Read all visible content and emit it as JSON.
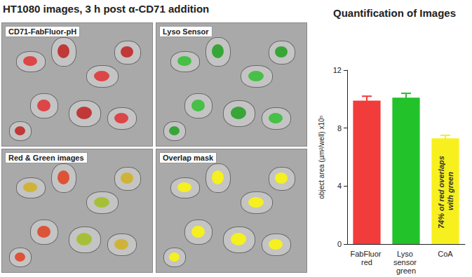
{
  "header": {
    "title": "HT1080 images, 3 h post α-CD71 addition"
  },
  "image_panels": [
    {
      "label": "CD71-FabFluor-pH"
    },
    {
      "label": "Lyso Sensor"
    },
    {
      "label": "Red & Green images"
    },
    {
      "label": "Overlap mask"
    }
  ],
  "chart_data": {
    "type": "bar",
    "title": "Quantification of Images",
    "y_label": "object area (µm²/well) x10⁵",
    "categories": [
      "FabFluor red",
      "Lyso sensor green",
      "CoA"
    ],
    "values": [
      9.9,
      10.1,
      7.3
    ],
    "errors": [
      0.3,
      0.3,
      0.2
    ],
    "colors": [
      "#f23b3b",
      "#22c22a",
      "#f7f01e"
    ],
    "ylim": [
      0,
      12
    ],
    "yticks": [
      0,
      4,
      8,
      12
    ],
    "grid": false,
    "annotations": [
      {
        "category": "CoA",
        "text": "74% of red overlaps with green"
      }
    ]
  }
}
